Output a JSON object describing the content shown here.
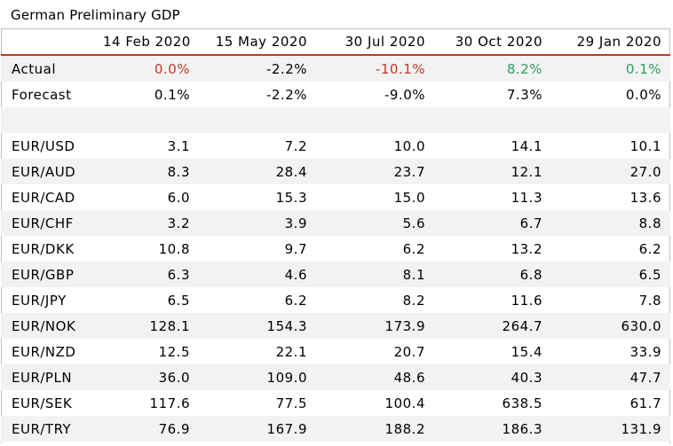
{
  "title": "German Preliminary GDP",
  "colors": {
    "negative": "#c0392b",
    "positive": "#2e9e5e",
    "header_rule": "#c0392b",
    "stripe": "#f2f2f2"
  },
  "header": {
    "col0": "",
    "dates": [
      "14 Feb 2020",
      "15 May 2020",
      "30 Jul 2020",
      "30 Oct 2020",
      "29 Jan 2020"
    ]
  },
  "actual": {
    "label": "Actual",
    "values": [
      "0.0%",
      "-2.2%",
      "-10.1%",
      "8.2%",
      "0.1%"
    ],
    "tones": [
      "negative",
      "neutral",
      "negative",
      "positive",
      "positive"
    ]
  },
  "forecast": {
    "label": "Forecast",
    "values": [
      "0.1%",
      "-2.2%",
      "-9.0%",
      "7.3%",
      "0.0%"
    ]
  },
  "pairs": [
    {
      "label": "EUR/USD",
      "values": [
        "3.1",
        "7.2",
        "10.0",
        "14.1",
        "10.1"
      ]
    },
    {
      "label": "EUR/AUD",
      "values": [
        "8.3",
        "28.4",
        "23.7",
        "12.1",
        "27.0"
      ]
    },
    {
      "label": "EUR/CAD",
      "values": [
        "6.0",
        "15.3",
        "15.0",
        "11.3",
        "13.6"
      ]
    },
    {
      "label": "EUR/CHF",
      "values": [
        "3.2",
        "3.9",
        "5.6",
        "6.7",
        "8.8"
      ]
    },
    {
      "label": "EUR/DKK",
      "values": [
        "10.8",
        "9.7",
        "6.2",
        "13.2",
        "6.2"
      ]
    },
    {
      "label": "EUR/GBP",
      "values": [
        "6.3",
        "4.6",
        "8.1",
        "6.8",
        "6.5"
      ]
    },
    {
      "label": "EUR/JPY",
      "values": [
        "6.5",
        "6.2",
        "8.2",
        "11.6",
        "7.8"
      ]
    },
    {
      "label": "EUR/NOK",
      "values": [
        "128.1",
        "154.3",
        "173.9",
        "264.7",
        "630.0"
      ]
    },
    {
      "label": "EUR/NZD",
      "values": [
        "12.5",
        "22.1",
        "20.7",
        "15.4",
        "33.9"
      ]
    },
    {
      "label": "EUR/PLN",
      "values": [
        "36.0",
        "109.0",
        "48.6",
        "40.3",
        "47.7"
      ]
    },
    {
      "label": "EUR/SEK",
      "values": [
        "117.6",
        "77.5",
        "100.4",
        "638.5",
        "61.7"
      ]
    },
    {
      "label": "EUR/TRY",
      "values": [
        "76.9",
        "167.9",
        "188.2",
        "186.3",
        "131.9"
      ]
    }
  ]
}
